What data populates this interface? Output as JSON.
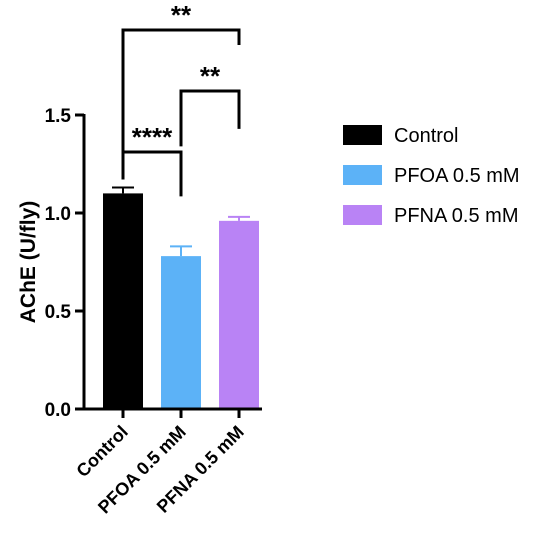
{
  "chart_data": {
    "type": "bar",
    "categories": [
      "Control",
      "PFOA 0.5 mM",
      "PFNA 0.5 mM"
    ],
    "values": [
      1.1,
      0.78,
      0.96
    ],
    "error_upper": [
      1.13,
      0.83,
      0.98
    ],
    "ylabel": "AChE (U/fly)",
    "ylim": [
      0,
      1.5
    ],
    "yticks": [
      0.0,
      0.5,
      1.0,
      1.5
    ],
    "ytick_labels": [
      "0.0",
      "0.5",
      "1.0",
      "1.5"
    ],
    "grid": false,
    "legend_position": "right",
    "legend": [
      {
        "label": "Control",
        "color": "#000000"
      },
      {
        "label": "PFOA 0.5 mM",
        "color": "#5cb2f7"
      },
      {
        "label": "PFNA 0.5 mM",
        "color": "#b983f5"
      }
    ],
    "significance": [
      {
        "from": 0,
        "to": 1,
        "label": "****"
      },
      {
        "from": 1,
        "to": 2,
        "label": "**"
      },
      {
        "from": 0,
        "to": 2,
        "label": "**"
      }
    ]
  }
}
